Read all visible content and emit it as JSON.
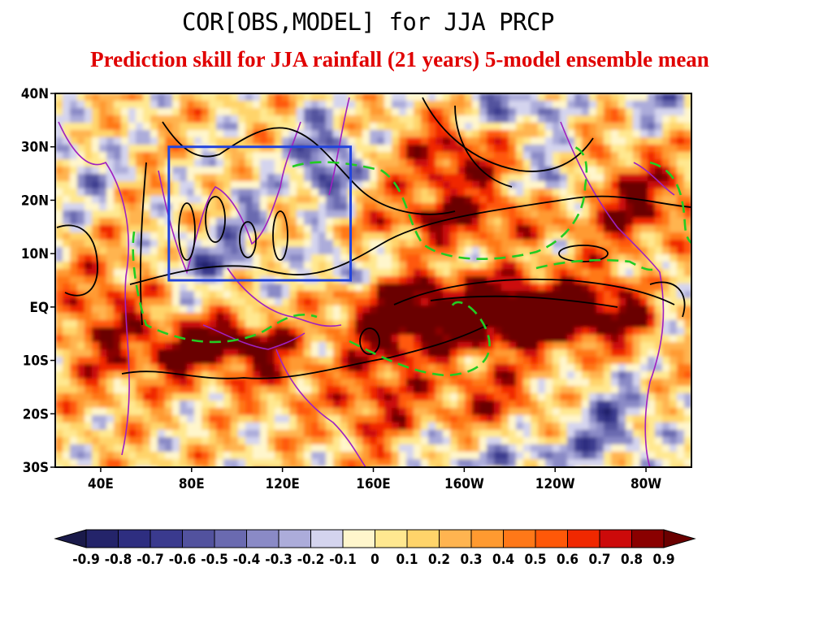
{
  "title": "COR[OBS,MODEL] for JJA PRCP",
  "subtitle": "Prediction skill for JJA rainfall (21 years) 5-model ensemble mean",
  "map": {
    "lon_labels": [
      "40E",
      "80E",
      "120E",
      "160E",
      "160W",
      "120W",
      "80W"
    ],
    "lon_values": [
      40,
      80,
      120,
      160,
      200,
      240,
      280
    ],
    "lon_range": [
      20,
      300
    ],
    "lat_labels": [
      "40N",
      "30N",
      "20N",
      "10N",
      "EQ",
      "10S",
      "20S",
      "30S"
    ],
    "lat_values": [
      40,
      30,
      20,
      10,
      0,
      -10,
      -20,
      -30
    ],
    "lat_range": [
      -30,
      40
    ],
    "box": {
      "lon": [
        70,
        150
      ],
      "lat": [
        5,
        30
      ],
      "color": "#2244dd"
    },
    "coast_color": "#a020c0",
    "dashed_contour_color": "#22cc22"
  },
  "colorbar": {
    "labels": [
      "-0.9",
      "-0.8",
      "-0.7",
      "-0.6",
      "-0.5",
      "-0.4",
      "-0.3",
      "-0.2",
      "-0.1",
      "0",
      "0.1",
      "0.2",
      "0.3",
      "0.4",
      "0.5",
      "0.6",
      "0.7",
      "0.8",
      "0.9"
    ],
    "colors": [
      "#1a1a4a",
      "#24246a",
      "#2e2e80",
      "#3a3a8e",
      "#52529e",
      "#6a6ab0",
      "#8a8ac6",
      "#acacda",
      "#d4d4ee",
      "#fff6cc",
      "#ffe890",
      "#ffd46a",
      "#ffb450",
      "#ff9a30",
      "#ff7818",
      "#ff5808",
      "#f02800",
      "#cc0a0a",
      "#8a0000",
      "#6a0000"
    ]
  }
}
